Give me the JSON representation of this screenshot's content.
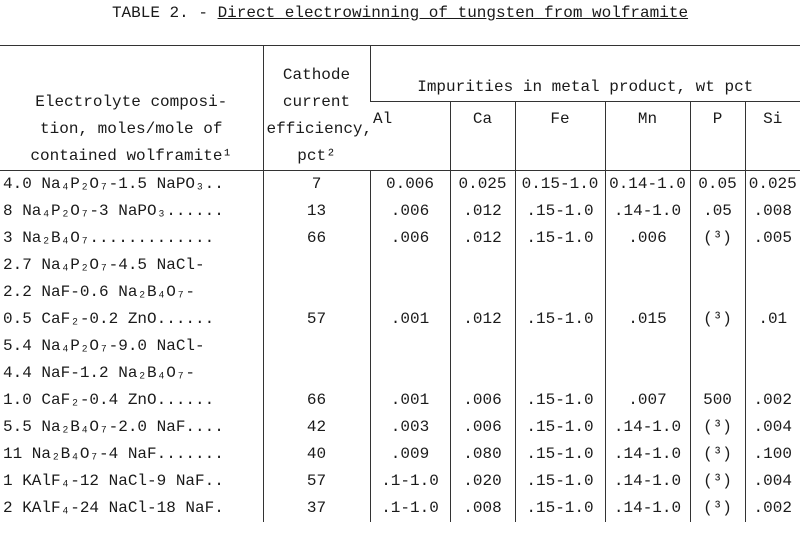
{
  "title": {
    "label": "TABLE 2. -",
    "text": "Direct electrowinning of tungsten from wolframite"
  },
  "table": {
    "header": {
      "composition": [
        "Electrolyte composi-",
        "tion, moles/mole of",
        "contained wolframite¹"
      ],
      "efficiency": [
        "Cathode",
        "current",
        "efficiency,",
        "pct²"
      ],
      "impurities": "Impurities in metal product, wt pct",
      "elements": [
        "Al",
        "Ca",
        "Fe",
        "Mn",
        "P",
        "Si"
      ]
    },
    "rows": [
      {
        "composition": [
          "4.0 Na₄P₂O₇-1.5 NaPO₃.."
        ],
        "efficiency": 7,
        "impurities": [
          "0.006",
          "0.025",
          "0.15-1.0",
          "0.14-1.0",
          "0.05",
          "0.025"
        ]
      },
      {
        "composition": [
          "8 Na₄P₂O₇-3 NaPO₃......"
        ],
        "efficiency": 13,
        "impurities": [
          ".006",
          ".012",
          ".15-1.0",
          ".14-1.0",
          ".05",
          ".008"
        ]
      },
      {
        "composition": [
          "3 Na₂B₄O₇............."
        ],
        "efficiency": 66,
        "impurities": [
          ".006",
          ".012",
          ".15-1.0",
          ".006",
          "(³)",
          ".005"
        ]
      },
      {
        "composition": [
          "2.7 Na₄P₂O₇-4.5 NaCl-",
          "2.2 NaF-0.6 Na₂B₄O₇-",
          "0.5 CaF₂-0.2 ZnO......"
        ],
        "efficiency": 57,
        "impurities": [
          ".001",
          ".012",
          ".15-1.0",
          ".015",
          "(³)",
          ".01"
        ]
      },
      {
        "composition": [
          "5.4 Na₄P₂O₇-9.0 NaCl-",
          "4.4 NaF-1.2 Na₂B₄O₇-",
          "1.0 CaF₂-0.4 ZnO......"
        ],
        "efficiency": 66,
        "impurities": [
          ".001",
          ".006",
          ".15-1.0",
          ".007",
          "500",
          ".002"
        ]
      },
      {
        "composition": [
          "5.5 Na₂B₄O₇-2.0 NaF...."
        ],
        "efficiency": 42,
        "impurities": [
          ".003",
          ".006",
          ".15-1.0",
          ".14-1.0",
          "(³)",
          ".004"
        ]
      },
      {
        "composition": [
          "11 Na₂B₄O₇-4 NaF......."
        ],
        "efficiency": 40,
        "impurities": [
          ".009",
          ".080",
          ".15-1.0",
          ".14-1.0",
          "(³)",
          ".100"
        ]
      },
      {
        "composition": [
          "1 KAlF₄-12 NaCl-9 NaF.."
        ],
        "efficiency": 57,
        "impurities": [
          ".1-1.0",
          ".020",
          ".15-1.0",
          ".14-1.0",
          "(³)",
          ".004"
        ]
      },
      {
        "composition": [
          "2 KAlF₄-24 NaCl-18 NaF."
        ],
        "efficiency": 37,
        "impurities": [
          ".1-1.0",
          ".008",
          ".15-1.0",
          ".14-1.0",
          "(³)",
          ".002"
        ]
      }
    ]
  }
}
